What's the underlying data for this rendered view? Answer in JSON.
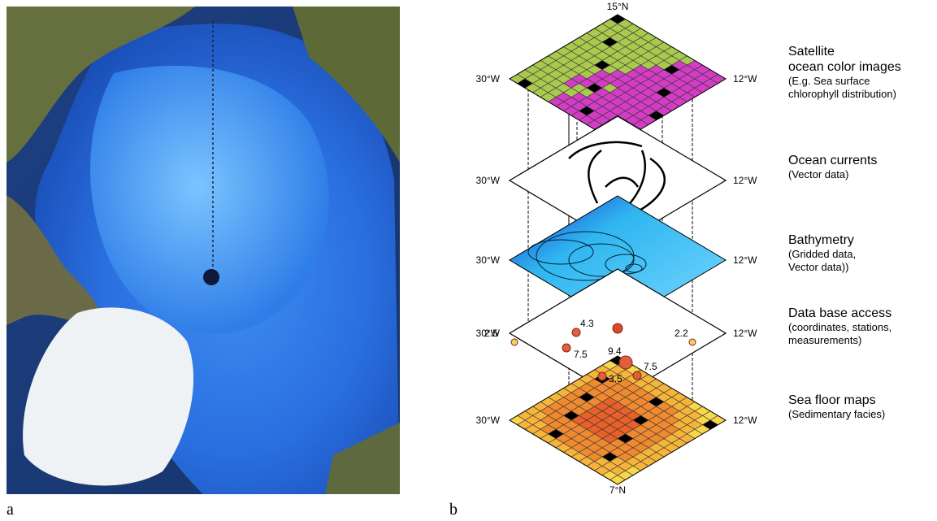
{
  "panels": [
    {
      "label": "a"
    },
    {
      "label": "b"
    }
  ],
  "diagram": {
    "top_label": "15°N",
    "bottom_label": "7°N",
    "layers": [
      {
        "west": "30°W",
        "east": "12°W",
        "title": [
          "Satellite",
          "ocean color images"
        ],
        "description": [
          "(E.g. Sea surface",
          "chlorophyll distribution)"
        ]
      },
      {
        "west": "30°W",
        "east": "12°W",
        "title": [
          "Ocean currents"
        ],
        "description": [
          "(Vector data)"
        ]
      },
      {
        "west": "30°W",
        "east": "12°W",
        "title": [
          "Bathymetry"
        ],
        "description": [
          "(Gridded data,",
          "Vector data))"
        ]
      },
      {
        "west": "30°W",
        "east": "12°W",
        "title": [
          "Data base access"
        ],
        "description": [
          "(coordinates, stations,",
          "measurements)"
        ]
      },
      {
        "west": "30°W",
        "east": "12°W",
        "title": [
          "Sea floor maps"
        ],
        "description": [
          "(Sedimentary facies)"
        ]
      }
    ],
    "measurements": [
      2.5,
      4.3,
      7.5,
      9.4,
      7.5,
      3.5,
      2.2
    ]
  }
}
